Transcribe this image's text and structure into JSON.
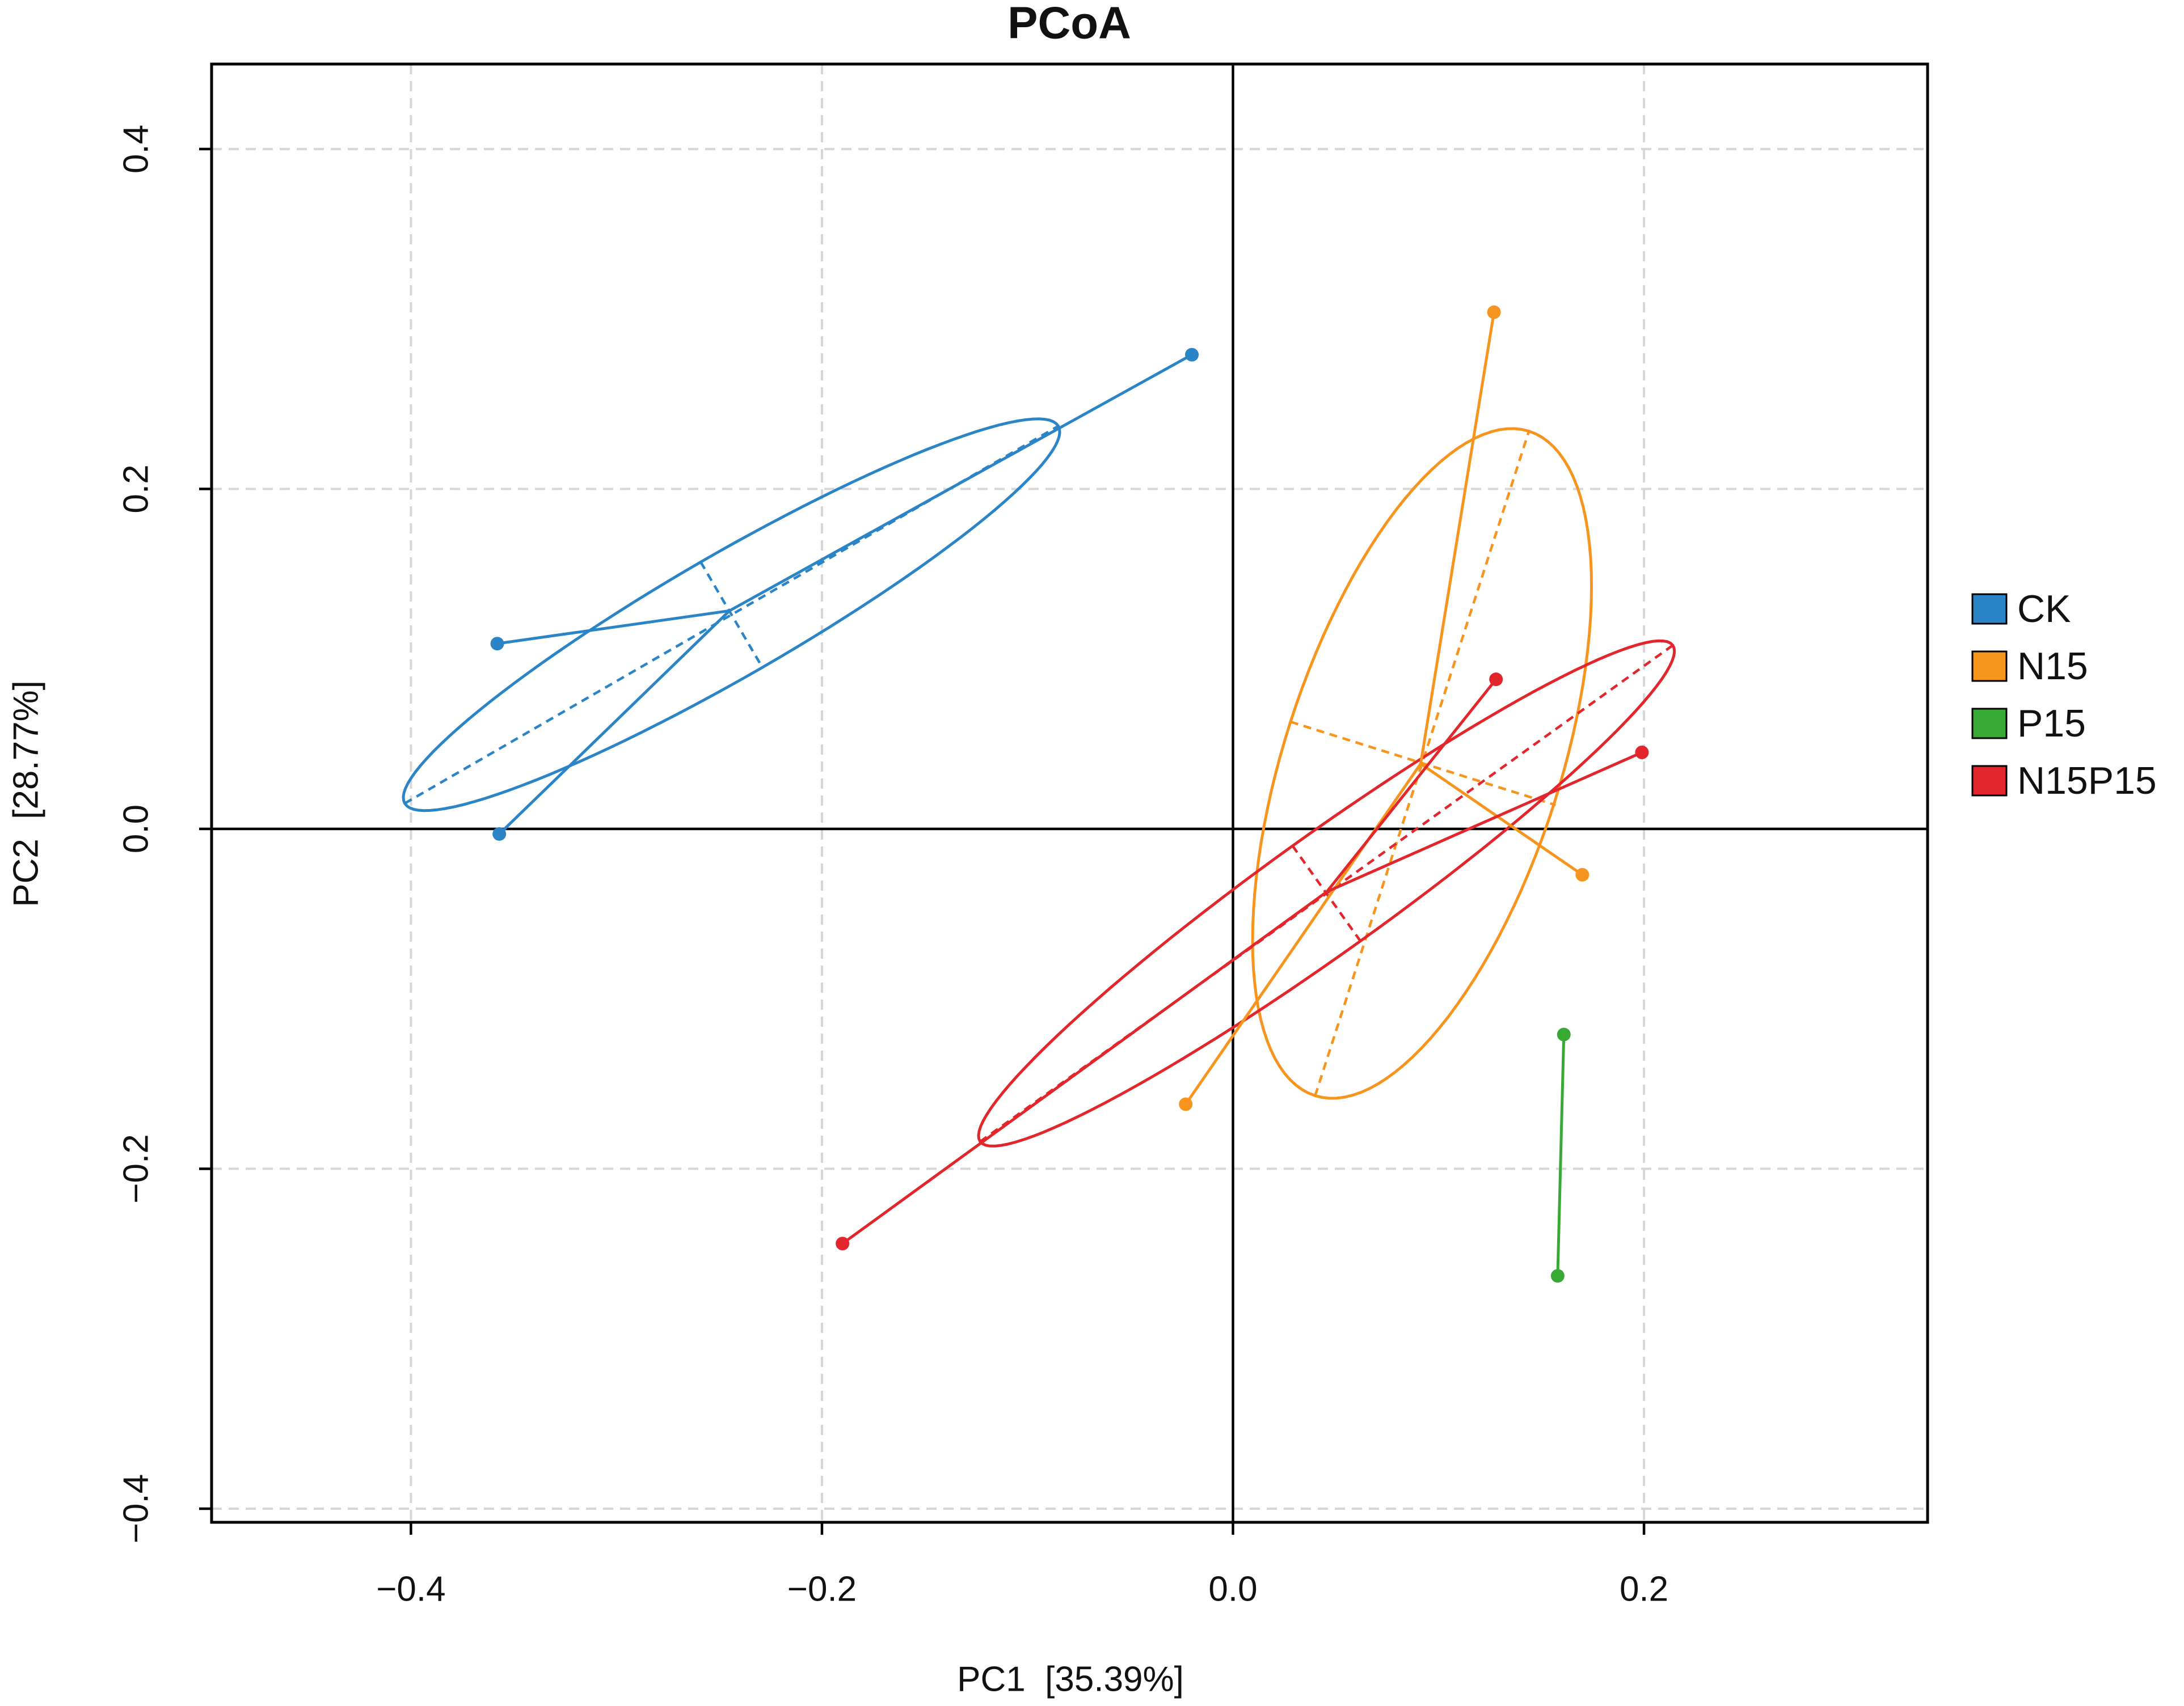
{
  "chart_data": {
    "type": "scatter",
    "title": "PCoA",
    "xlabel": "PC1  [35.39%]",
    "ylabel": "PC2  [28.77%]",
    "xlim": [
      -0.497,
      0.338
    ],
    "ylim": [
      -0.408,
      0.45
    ],
    "xticks": [
      -0.4,
      -0.2,
      0.0,
      0.2
    ],
    "xtick_labels": [
      "−0.4",
      "−0.2",
      "0.0",
      "0.2"
    ],
    "yticks": [
      0.4,
      0.2,
      0.0,
      -0.2,
      -0.4
    ],
    "ytick_labels": [
      "0.4",
      "0.2",
      "0.0",
      "−0.2",
      "−0.4"
    ],
    "grid": true,
    "reference_lines": {
      "x": 0,
      "y": 0
    },
    "legend_position": "right",
    "series": [
      {
        "name": "CK",
        "color": "#2a84c6",
        "points": [
          {
            "x": -0.02,
            "y": 0.279
          },
          {
            "x": -0.358,
            "y": 0.109
          },
          {
            "x": -0.357,
            "y": -0.003
          }
        ],
        "ellipse": {
          "major_axis": [
            [
              -0.403,
              0.015
            ],
            [
              -0.085,
              0.237
            ]
          ],
          "minor_axis": [
            [
              -0.259,
              0.157
            ],
            [
              -0.229,
              0.095
            ]
          ]
        }
      },
      {
        "name": "N15",
        "color": "#f7941e",
        "points": [
          {
            "x": 0.127,
            "y": 0.304
          },
          {
            "x": 0.17,
            "y": -0.027
          },
          {
            "x": -0.023,
            "y": -0.162
          }
        ],
        "ellipse": {
          "major_axis": [
            [
              0.04,
              -0.157
            ],
            [
              0.144,
              0.234
            ]
          ],
          "minor_axis": [
            [
              0.028,
              0.063
            ],
            [
              0.157,
              0.014
            ]
          ]
        }
      },
      {
        "name": "P15",
        "color": "#39a935",
        "points": [
          {
            "x": 0.161,
            "y": -0.121
          },
          {
            "x": 0.158,
            "y": -0.263
          }
        ]
      },
      {
        "name": "N15P15",
        "color": "#e2262b",
        "points": [
          {
            "x": 0.128,
            "y": 0.088
          },
          {
            "x": 0.199,
            "y": 0.045
          },
          {
            "x": -0.19,
            "y": -0.244
          }
        ],
        "ellipse": {
          "major_axis": [
            [
              -0.123,
              -0.184
            ],
            [
              0.214,
              0.108
            ]
          ],
          "minor_axis": [
            [
              0.029,
              -0.01
            ],
            [
              0.062,
              -0.066
            ]
          ]
        }
      }
    ]
  }
}
